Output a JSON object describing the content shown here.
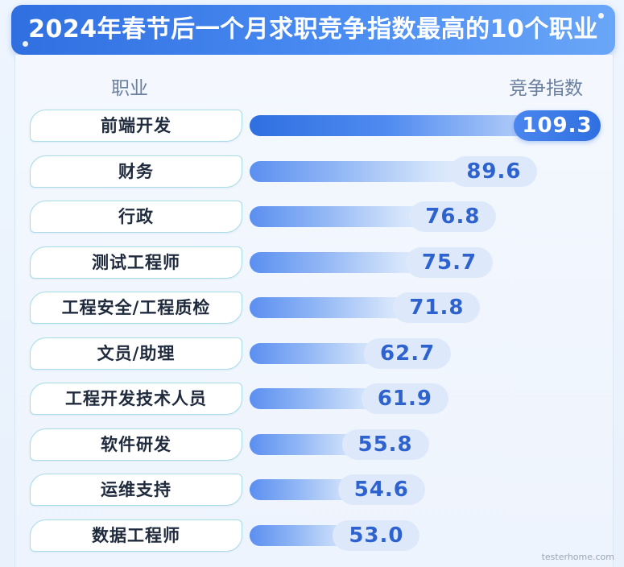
{
  "header": {
    "title": "2024年春节后一个月求职竞争指数最高的10个职业"
  },
  "chart_data": {
    "type": "bar",
    "orientation": "horizontal",
    "title": "2024年春节后一个月求职竞争指数最高的10个职业",
    "xlabel": "竞争指数",
    "ylabel": "职业",
    "categories": [
      "前端开发",
      "财务",
      "行政",
      "测试工程师",
      "工程安全/工程质检",
      "文员/助理",
      "工程开发技术人员",
      "软件研发",
      "运维支持",
      "数据工程师"
    ],
    "values": [
      109.3,
      89.6,
      76.8,
      75.7,
      71.8,
      62.7,
      61.9,
      55.8,
      54.6,
      53.0
    ],
    "value_labels": [
      "109.3",
      "89.6",
      "76.8",
      "75.7",
      "71.8",
      "62.7",
      "61.9",
      "55.8",
      "54.6",
      "53.0"
    ],
    "colors": {
      "accent": "#2f6fe0",
      "label_border": "#a9dde6",
      "value_text": "#2e63cf"
    }
  },
  "watermark": "testerhome.com"
}
